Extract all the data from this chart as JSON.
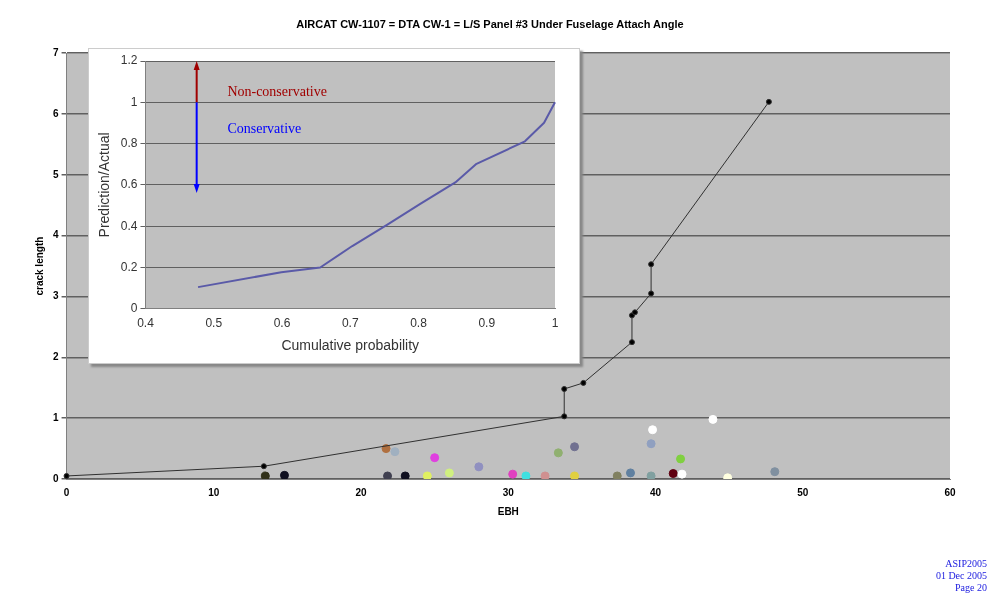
{
  "chart_data": [
    {
      "type": "line",
      "title": "AIRCAT CW-1107 = DTA CW-1 = L/S Panel #3 Under Fuselage Attach Angle",
      "xlabel": "EBH",
      "ylabel": "crack length",
      "xlim": [
        0,
        60
      ],
      "xticks": [
        0,
        10,
        20,
        30,
        40,
        50,
        60
      ],
      "ylim": [
        0,
        7
      ],
      "yticks": [
        0,
        1,
        2,
        3,
        4,
        5,
        6,
        7
      ],
      "grid": "y",
      "legend": false,
      "marker": "circle",
      "series": [
        {
          "color": "#303030",
          "x": [
            0,
            13.4,
            33.8,
            33.8,
            35.1,
            38.4,
            38.4,
            38.6,
            39.7,
            39.7,
            47.7
          ],
          "values": [
            0.05,
            0.21,
            1.03,
            1.48,
            1.58,
            2.25,
            2.69,
            2.74,
            3.05,
            3.53,
            6.2
          ]
        },
        {
          "type": "scatter",
          "x": [
            13.5,
            14.8,
            21.7,
            22.3,
            21.8,
            23,
            24.5,
            25,
            26,
            28,
            30.3,
            31.2,
            32.5,
            33.4,
            34.5,
            34.5,
            37.4,
            38.3,
            39.7,
            39.7,
            39.8,
            41.2,
            41.7,
            41.8,
            43.9,
            44.9,
            48.1
          ],
          "values": [
            0.05,
            0.06,
            0.5,
            0.45,
            0.05,
            0.05,
            0.05,
            0.35,
            0.1,
            0.2,
            0.08,
            0.05,
            0.05,
            0.43,
            0.53,
            0.05,
            0.05,
            0.1,
            0.05,
            0.58,
            0.81,
            0.09,
            0.33,
            0.08,
            0.98,
            0.02,
            0.12
          ],
          "colors": [
            "#303018",
            "#101020",
            "#b07040",
            "#a0b0c0",
            "#404050",
            "#101020",
            "#e0f060",
            "#e040e0",
            "#d0f080",
            "#9090c0",
            "#e040c0",
            "#40e0e0",
            "#d09090",
            "#90b070",
            "#707090",
            "#e0d040",
            "#808060",
            "#6080a0",
            "#80a0a0",
            "#90a0c0",
            "#ffffff",
            "#600010",
            "#80d040",
            "#ffffff",
            "#ffffff",
            "#ffffe0",
            "#8090a0"
          ]
        }
      ],
      "annotations": [
        "ASIP2005",
        "01 Dec 2005",
        "Page 20"
      ]
    },
    {
      "type": "line",
      "xlabel": "Cumulative probability",
      "ylabel": "Prediction/Actual",
      "xlim": [
        0.4,
        1
      ],
      "xticks": [
        0.4,
        0.5,
        0.6,
        0.7,
        0.8,
        0.9,
        1
      ],
      "ylim": [
        0,
        1.2
      ],
      "yticks": [
        0,
        0.2,
        0.4,
        0.6,
        0.8,
        1,
        1.2
      ],
      "grid": "y",
      "legend": false,
      "marker": "none",
      "series": [
        {
          "color": "#5a5aa8",
          "x": [
            0.477,
            0.599,
            0.656,
            0.703,
            0.755,
            0.802,
            0.854,
            0.885,
            0.956,
            0.984,
            1.0
          ],
          "values": [
            0.105,
            0.177,
            0.2,
            0.304,
            0.409,
            0.507,
            0.612,
            0.702,
            0.811,
            0.901,
            1.0
          ]
        }
      ],
      "annotations": [
        "Non-conservative",
        "Conservative"
      ]
    }
  ]
}
